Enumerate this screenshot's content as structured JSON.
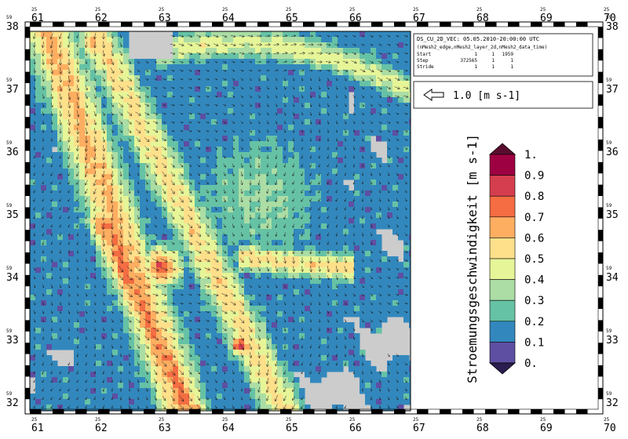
{
  "map": {
    "top_axis": {
      "major_prefix": "25",
      "ticks": [
        "61",
        "62",
        "63",
        "64",
        "65",
        "66",
        "67",
        "68",
        "69",
        "70"
      ]
    },
    "bottom_axis": {
      "major_prefix": "25",
      "ticks": [
        "61",
        "62",
        "63",
        "64",
        "65",
        "66",
        "67",
        "68",
        "69",
        "70"
      ]
    },
    "left_axis": {
      "major_prefix": "59",
      "ticks": [
        "38",
        "37",
        "36",
        "35",
        "34",
        "33",
        "32"
      ]
    },
    "right_axis": {
      "major_prefix": "59",
      "ticks": [
        "38",
        "37",
        "36",
        "35",
        "34",
        "33",
        "32"
      ]
    }
  },
  "info_box": {
    "line1": "DS_CU_2D_VEC: 05.05.2010-20:00:00 UTC",
    "line2": "(nMesh2_edge,nMesh2_layer_2d,nMesh2_data_time)",
    "rows": [
      {
        "label": "Start",
        "v1": "1",
        "v2": "1",
        "v3": "1959"
      },
      {
        "label": "Step",
        "v1": "372565",
        "v2": "1",
        "v3": "1"
      },
      {
        "label": "Stride",
        "v1": "1",
        "v2": "1",
        "v3": "1"
      }
    ]
  },
  "reference_vector": {
    "label": "1.0 [m s-1]"
  },
  "colorbar": {
    "title": "Stroemungsgeschwindigkeit [m s-1]",
    "labels": [
      "1.",
      "0.9",
      "0.8",
      "0.7",
      "0.6",
      "0.5",
      "0.4",
      "0.3",
      "0.2",
      "0.1",
      "0."
    ],
    "colors": [
      "#9e0142",
      "#d53e4f",
      "#f46d43",
      "#fdae61",
      "#fee08b",
      "#e6f598",
      "#abdda4",
      "#66c2a5",
      "#3288bd",
      "#5e4fa2"
    ],
    "over_color": "#5a0d2e",
    "under_color": "#2b1d4e"
  },
  "colors": {
    "land": "#cccccc",
    "frame": "#000000",
    "arrow_stroke": "#1a1a1a"
  }
}
